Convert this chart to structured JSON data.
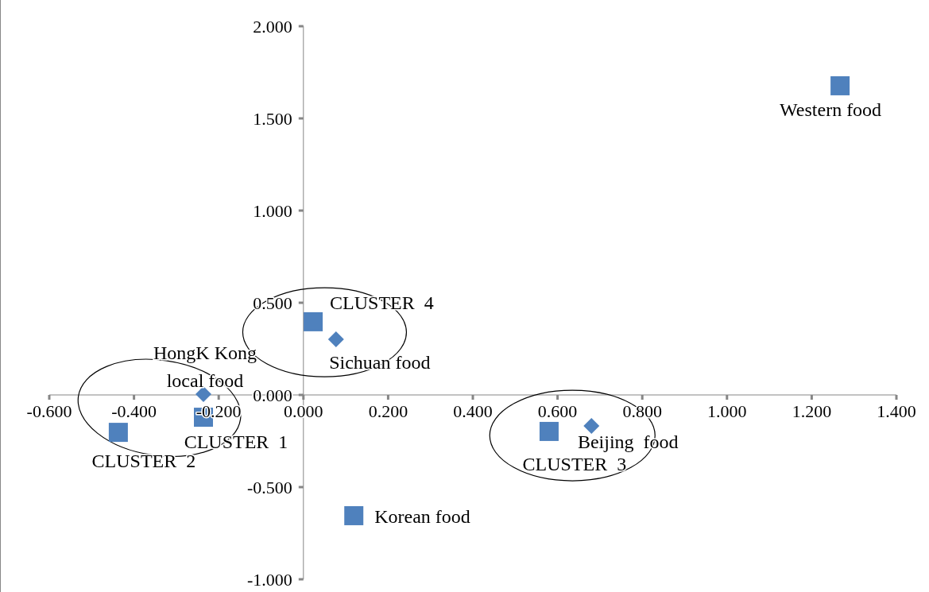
{
  "chart_data": {
    "type": "scatter",
    "xlim": [
      -0.6,
      1.4
    ],
    "ylim": [
      -1,
      2
    ],
    "xticks": [
      {
        "value": -0.6,
        "label": "-0.600"
      },
      {
        "value": -0.4,
        "label": "-0.400"
      },
      {
        "value": -0.2,
        "label": "-0.200"
      },
      {
        "value": 0,
        "label": "0.000"
      },
      {
        "value": 0.2,
        "label": "0.200"
      },
      {
        "value": 0.4,
        "label": "0.400"
      },
      {
        "value": 0.6,
        "label": "0.600"
      },
      {
        "value": 0.8,
        "label": "0.800"
      },
      {
        "value": 1,
        "label": "1.000"
      },
      {
        "value": 1.2,
        "label": "1.200"
      },
      {
        "value": 1.4,
        "label": "1.400"
      }
    ],
    "yticks": [
      {
        "value": -1,
        "label": "-1.000"
      },
      {
        "value": -0.5,
        "label": "-0.500"
      },
      {
        "value": 0,
        "label": "0.000"
      },
      {
        "value": 0.5,
        "label": "0.500"
      },
      {
        "value": 1,
        "label": "1.000"
      },
      {
        "value": 1.5,
        "label": "1.500"
      },
      {
        "value": 2,
        "label": "2.000"
      }
    ],
    "series": [
      {
        "color": "#4f81bd",
        "marker": "square",
        "x": [
          1.267,
          0.023,
          -0.236,
          -0.437,
          0.58,
          0.119
        ],
        "values": [
          1.677,
          0.397,
          -0.121,
          -0.203,
          -0.198,
          -0.655
        ]
      },
      {
        "color": "#4f81bd",
        "marker": "diamond",
        "x": [
          0.077,
          -0.236,
          0.68
        ],
        "values": [
          0.302,
          0.004,
          -0.168
        ]
      }
    ],
    "annotations": [
      {
        "text": "Western food",
        "x": 1.267,
        "y": 1.677
      },
      {
        "text": "CLUSTER  4",
        "x": 0.023,
        "y": 0.397
      },
      {
        "text": "Sichuan food",
        "x": 0.077,
        "y": 0.302
      },
      {
        "text": "HongK Kong local food",
        "x": -0.236,
        "y": 0.004
      },
      {
        "text": "CLUSTER  1",
        "x": -0.236,
        "y": -0.121
      },
      {
        "text": "CLUSTER  2",
        "x": -0.437,
        "y": -0.203
      },
      {
        "text": "CLUSTER  3",
        "x": 0.58,
        "y": -0.198
      },
      {
        "text": "Beijing  food",
        "x": 0.68,
        "y": -0.168
      },
      {
        "text": "Korean food",
        "x": 0.119,
        "y": -0.655
      }
    ]
  }
}
